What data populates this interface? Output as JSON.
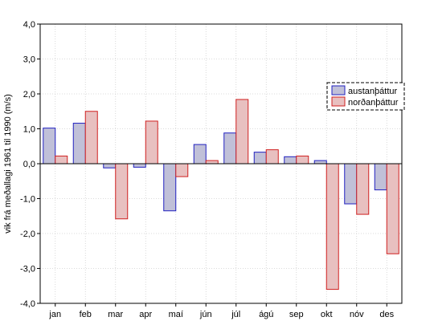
{
  "chart_data": {
    "type": "bar",
    "title": "",
    "xlabel": "",
    "ylabel": "vik frá meðallagi 1961 til 1990 (m/s)",
    "ylim": [
      -4.0,
      4.0
    ],
    "yticks": [
      "-4,0",
      "-3,0",
      "-2,0",
      "-1,0",
      "0,0",
      "1,0",
      "2,0",
      "3,0",
      "4,0"
    ],
    "categories": [
      "jan",
      "feb",
      "mar",
      "apr",
      "maí",
      "jún",
      "júl",
      "ágú",
      "sep",
      "okt",
      "nóv",
      "des"
    ],
    "grid": true,
    "legend_position": "right",
    "series": [
      {
        "name": "austanþáttur",
        "fill": "#c0c0d8",
        "stroke": "#2020c0",
        "values": [
          1.02,
          1.16,
          -0.12,
          -0.1,
          -1.35,
          0.55,
          0.88,
          0.33,
          0.2,
          0.09,
          -1.15,
          -0.75
        ]
      },
      {
        "name": "norðanþáttur",
        "fill": "#e8c0c0",
        "stroke": "#d02020",
        "values": [
          0.22,
          1.5,
          -1.58,
          1.22,
          -0.37,
          0.09,
          1.84,
          0.4,
          0.22,
          -3.6,
          -1.45,
          -2.58
        ]
      }
    ]
  }
}
